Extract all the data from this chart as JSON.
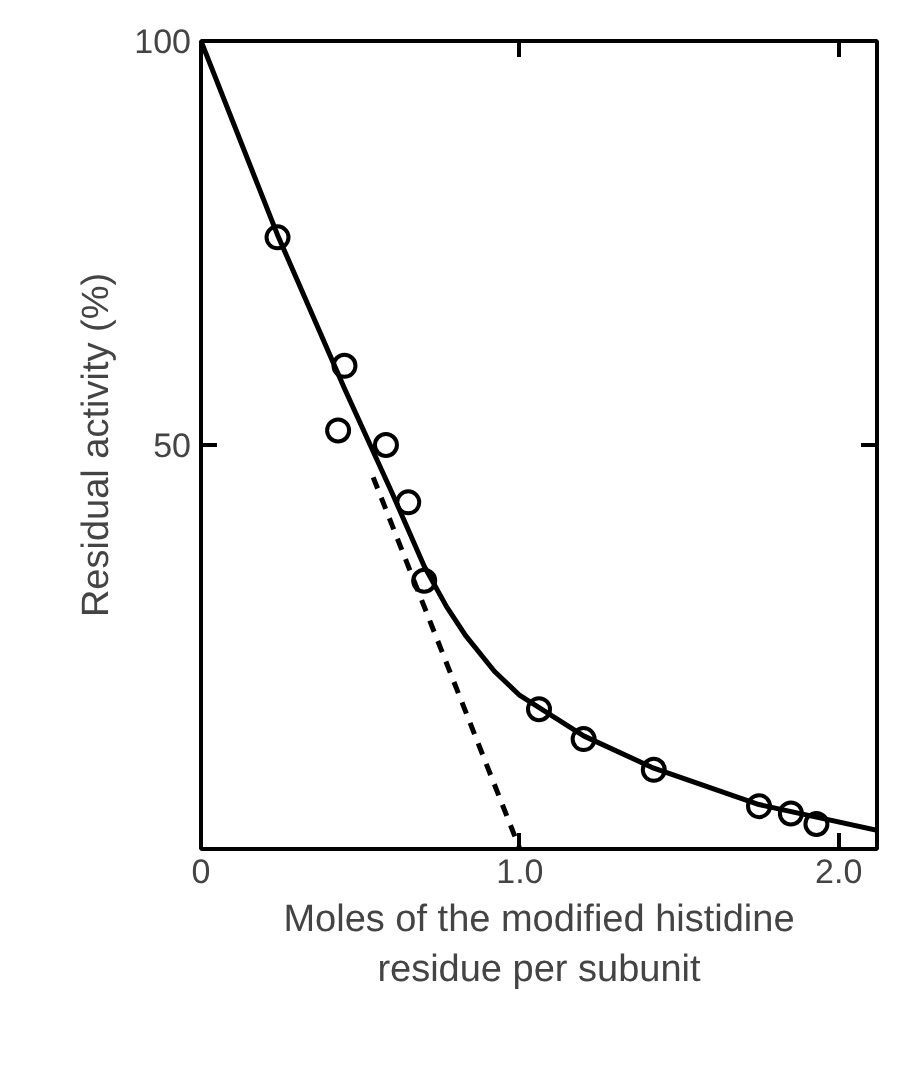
{
  "chart_data": {
    "type": "scatter",
    "xlabel": "Moles of the modified histidine\nresidue per subunit",
    "ylabel": "Residual activity (%)",
    "xlim": [
      0,
      2.12
    ],
    "ylim": [
      0,
      100
    ],
    "xticks": [
      0,
      {
        "value": 1.0,
        "label": "1.0"
      },
      {
        "value": 2.0,
        "label": "2.0"
      }
    ],
    "yticks": [
      {
        "value": 0,
        "label": null
      },
      50,
      100
    ],
    "grid": false,
    "series": [
      {
        "marker": "circle",
        "color": "#000000",
        "x": [
          0.24,
          0.45,
          0.43,
          0.58,
          0.65,
          0.7,
          1.06,
          1.2,
          1.42,
          1.75,
          1.85,
          1.93
        ],
        "values": [
          75.7,
          59.8,
          51.8,
          50,
          42.9,
          33.2,
          17.3,
          13.6,
          9.8,
          5.3,
          4.4,
          3.1
        ]
      },
      {
        "type": "line",
        "line_style": "solid",
        "color": "#000000",
        "x": [
          0,
          0.24,
          0.45,
          0.6,
          0.7,
          0.77,
          0.83,
          0.92,
          1.0,
          1.2,
          1.42,
          1.75,
          2.12
        ],
        "values": [
          100,
          76,
          57,
          44,
          35,
          30,
          26.4,
          22,
          19,
          14,
          10,
          5.5,
          2.3
        ]
      },
      {
        "type": "line",
        "line_style": "dashed",
        "color": "#000000",
        "x": [
          0.54,
          1.0
        ],
        "values": [
          46,
          0
        ]
      }
    ]
  }
}
